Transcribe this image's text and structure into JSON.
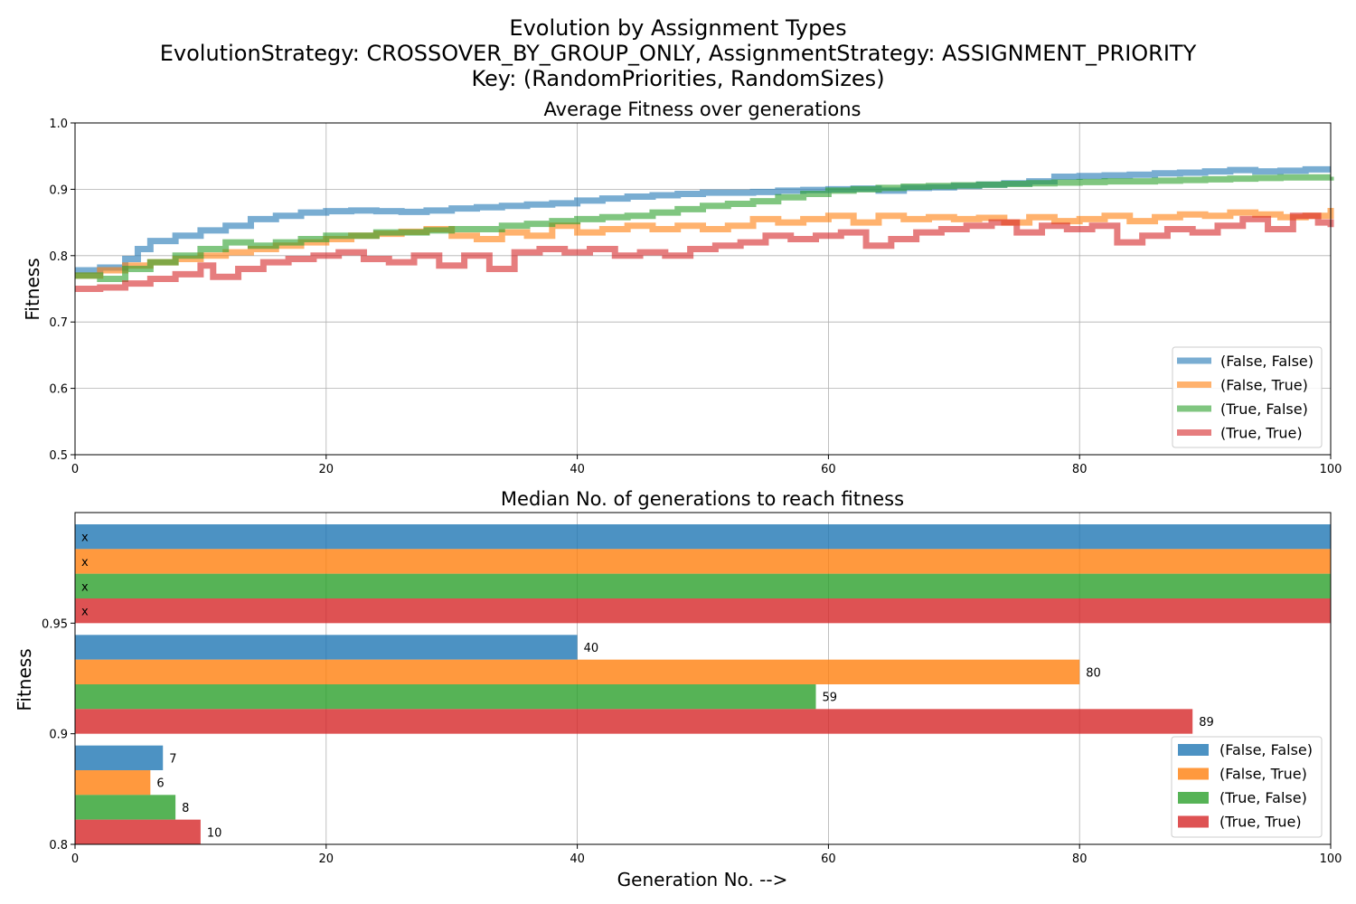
{
  "figure": {
    "title_lines": [
      "Evolution by Assignment Types",
      "EvolutionStrategy: CROSSOVER_BY_GROUP_ONLY, AssignmentStrategy: ASSIGNMENT_PRIORITY",
      "Key: (RandomPriorities, RandomSizes)"
    ],
    "xlabel": "Generation No. -->"
  },
  "chart_data": [
    {
      "type": "line",
      "step": true,
      "title": "Average Fitness over generations",
      "xlabel": "",
      "ylabel": "Fitness",
      "xlim": [
        0,
        100
      ],
      "ylim": [
        0.5,
        1.0
      ],
      "xticks": [
        0,
        20,
        40,
        60,
        80,
        100
      ],
      "xtick_labels": [
        "0",
        "20",
        "40",
        "60",
        "80",
        "100"
      ],
      "yticks": [
        0.5,
        0.6,
        0.7,
        0.8,
        0.9,
        1.0
      ],
      "ytick_labels": [
        "0.5",
        "0.6",
        "0.7",
        "0.8",
        "0.9",
        "1.0"
      ],
      "grid": true,
      "legend": "lower-right",
      "series": [
        {
          "name": "(False, False)",
          "color": "#1f77b4",
          "x": [
            0,
            2,
            4,
            5,
            6,
            8,
            10,
            12,
            14,
            16,
            18,
            20,
            22,
            24,
            26,
            28,
            30,
            32,
            34,
            36,
            38,
            40,
            42,
            44,
            46,
            48,
            50,
            52,
            54,
            56,
            58,
            60,
            62,
            64,
            66,
            68,
            70,
            72,
            74,
            76,
            78,
            80,
            82,
            84,
            86,
            88,
            90,
            92,
            94,
            96,
            98,
            100
          ],
          "y": [
            0.778,
            0.782,
            0.795,
            0.81,
            0.822,
            0.83,
            0.838,
            0.845,
            0.855,
            0.86,
            0.865,
            0.867,
            0.868,
            0.867,
            0.866,
            0.868,
            0.871,
            0.873,
            0.875,
            0.877,
            0.879,
            0.883,
            0.886,
            0.889,
            0.891,
            0.893,
            0.895,
            0.895,
            0.896,
            0.898,
            0.899,
            0.9,
            0.901,
            0.898,
            0.902,
            0.903,
            0.905,
            0.907,
            0.909,
            0.912,
            0.919,
            0.92,
            0.921,
            0.922,
            0.924,
            0.925,
            0.927,
            0.929,
            0.927,
            0.928,
            0.93,
            0.93
          ]
        },
        {
          "name": "(False, True)",
          "color": "#ff7f0e",
          "x": [
            0,
            2,
            4,
            6,
            8,
            10,
            12,
            14,
            16,
            18,
            20,
            22,
            24,
            26,
            28,
            30,
            32,
            34,
            36,
            38,
            40,
            42,
            44,
            46,
            48,
            50,
            52,
            54,
            56,
            58,
            60,
            62,
            64,
            66,
            68,
            70,
            72,
            74,
            76,
            78,
            80,
            82,
            84,
            86,
            88,
            90,
            92,
            94,
            96,
            98,
            100
          ],
          "y": [
            0.77,
            0.778,
            0.785,
            0.79,
            0.795,
            0.8,
            0.805,
            0.81,
            0.815,
            0.82,
            0.825,
            0.83,
            0.833,
            0.836,
            0.84,
            0.83,
            0.825,
            0.835,
            0.83,
            0.845,
            0.835,
            0.84,
            0.845,
            0.84,
            0.845,
            0.84,
            0.845,
            0.855,
            0.85,
            0.855,
            0.86,
            0.85,
            0.86,
            0.855,
            0.858,
            0.855,
            0.857,
            0.85,
            0.858,
            0.852,
            0.855,
            0.86,
            0.852,
            0.858,
            0.862,
            0.86,
            0.865,
            0.862,
            0.858,
            0.86,
            0.872
          ]
        },
        {
          "name": "(True, False)",
          "color": "#2ca02c",
          "x": [
            0,
            2,
            4,
            6,
            8,
            10,
            12,
            14,
            16,
            18,
            20,
            22,
            24,
            26,
            28,
            30,
            32,
            34,
            36,
            38,
            40,
            42,
            44,
            46,
            48,
            50,
            52,
            54,
            56,
            58,
            60,
            62,
            64,
            66,
            68,
            70,
            72,
            74,
            76,
            78,
            80,
            82,
            84,
            86,
            88,
            90,
            92,
            94,
            96,
            98,
            100
          ],
          "y": [
            0.77,
            0.765,
            0.78,
            0.79,
            0.8,
            0.81,
            0.82,
            0.815,
            0.82,
            0.825,
            0.83,
            0.83,
            0.835,
            0.835,
            0.838,
            0.84,
            0.84,
            0.845,
            0.848,
            0.852,
            0.855,
            0.858,
            0.86,
            0.865,
            0.87,
            0.875,
            0.878,
            0.882,
            0.888,
            0.893,
            0.898,
            0.9,
            0.902,
            0.904,
            0.905,
            0.906,
            0.907,
            0.908,
            0.909,
            0.91,
            0.911,
            0.912,
            0.912,
            0.913,
            0.914,
            0.915,
            0.916,
            0.917,
            0.918,
            0.918,
            0.919
          ]
        },
        {
          "name": "(True, True)",
          "color": "#d62728",
          "x": [
            0,
            2,
            4,
            6,
            8,
            10,
            11,
            13,
            15,
            17,
            19,
            21,
            23,
            25,
            27,
            29,
            31,
            33,
            35,
            37,
            39,
            41,
            43,
            45,
            47,
            49,
            51,
            53,
            55,
            57,
            59,
            61,
            63,
            65,
            67,
            69,
            71,
            73,
            75,
            77,
            79,
            81,
            83,
            85,
            87,
            89,
            91,
            93,
            95,
            97,
            99,
            100
          ],
          "y": [
            0.75,
            0.752,
            0.758,
            0.765,
            0.772,
            0.785,
            0.768,
            0.78,
            0.79,
            0.795,
            0.8,
            0.805,
            0.795,
            0.79,
            0.8,
            0.785,
            0.8,
            0.78,
            0.805,
            0.81,
            0.805,
            0.81,
            0.8,
            0.805,
            0.8,
            0.81,
            0.815,
            0.82,
            0.83,
            0.825,
            0.83,
            0.835,
            0.815,
            0.825,
            0.835,
            0.84,
            0.845,
            0.85,
            0.835,
            0.845,
            0.84,
            0.845,
            0.82,
            0.83,
            0.84,
            0.835,
            0.845,
            0.855,
            0.84,
            0.86,
            0.85,
            0.843
          ]
        }
      ]
    },
    {
      "type": "bar",
      "orientation": "horizontal",
      "title": "Median No. of generations to reach fitness",
      "xlabel": "",
      "ylabel": "Fitness",
      "xlim": [
        0,
        100
      ],
      "xticks": [
        0,
        20,
        40,
        60,
        80,
        100
      ],
      "xtick_labels": [
        "0",
        "20",
        "40",
        "60",
        "80",
        "100"
      ],
      "ytick_labels": [
        "0.8",
        "0.9",
        "0.95"
      ],
      "grid": true,
      "legend": "lower-right",
      "categories": [
        "0.8",
        "0.9",
        "0.95"
      ],
      "series": [
        {
          "name": "(False, False)",
          "color": "#1f77b4",
          "values": [
            7,
            40,
            100
          ],
          "labels": [
            "7",
            "40",
            "x"
          ]
        },
        {
          "name": "(False, True)",
          "color": "#ff7f0e",
          "values": [
            6,
            80,
            100
          ],
          "labels": [
            "6",
            "80",
            "x"
          ]
        },
        {
          "name": "(True, False)",
          "color": "#2ca02c",
          "values": [
            8,
            59,
            100
          ],
          "labels": [
            "8",
            "59",
            "x"
          ]
        },
        {
          "name": "(True, True)",
          "color": "#d62728",
          "values": [
            10,
            89,
            100
          ],
          "labels": [
            "10",
            "89",
            "x"
          ]
        }
      ]
    }
  ]
}
